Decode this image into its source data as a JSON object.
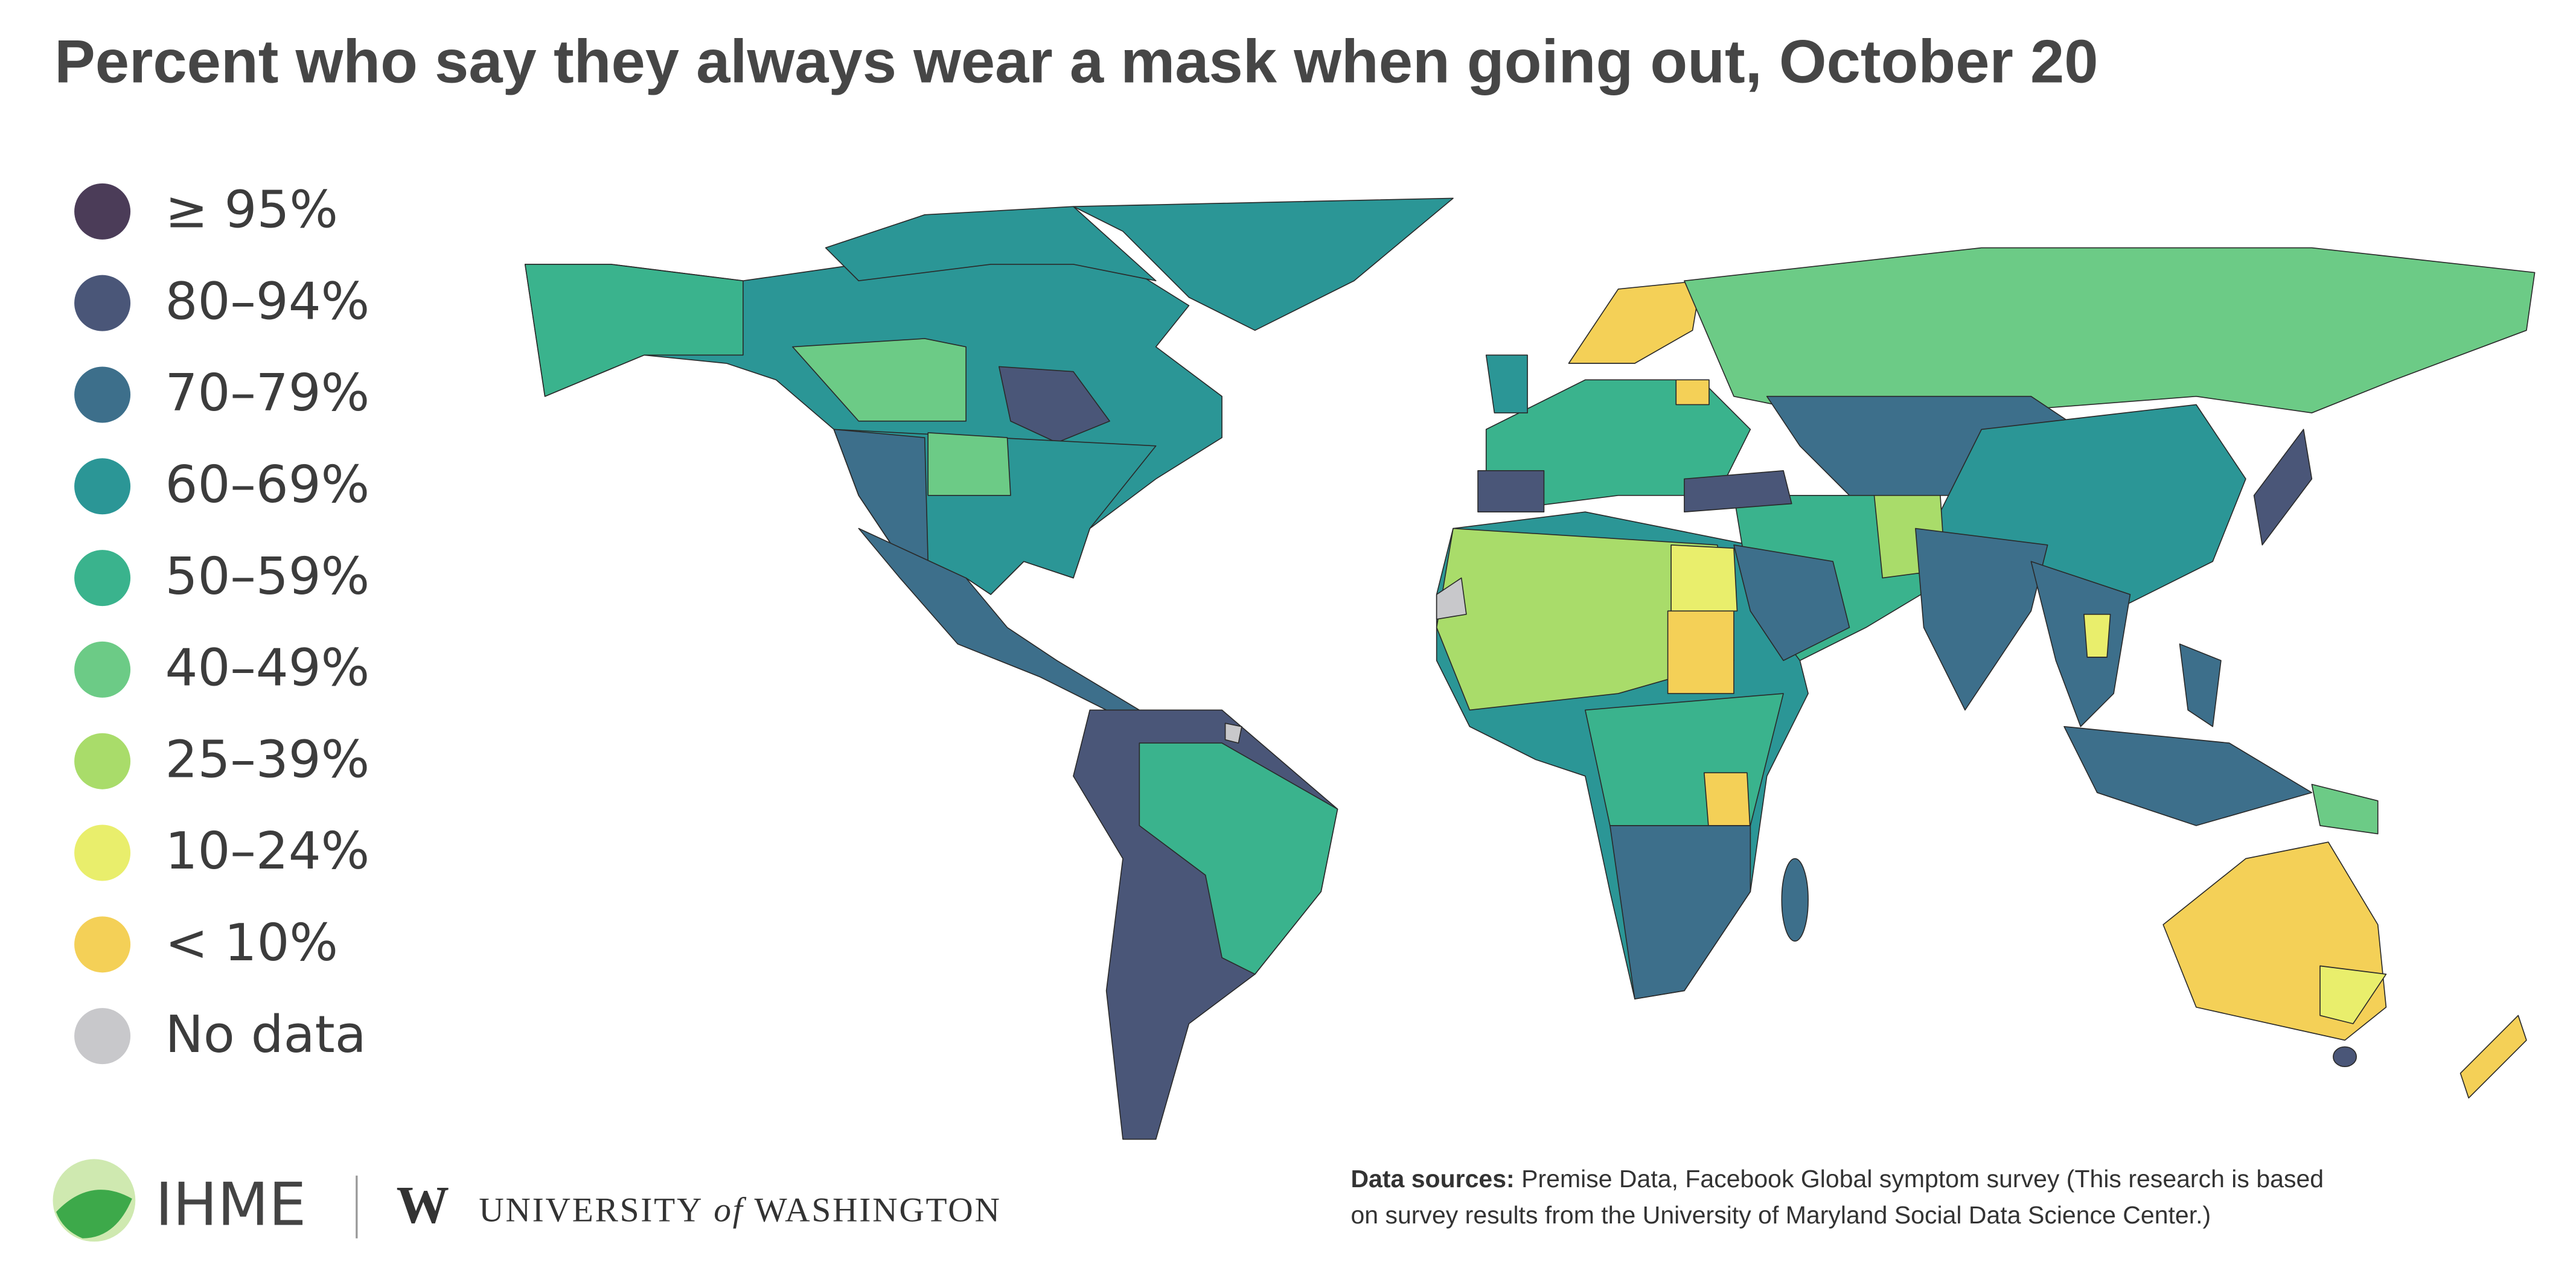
{
  "title": "Percent who say they always wear a mask when going out, October 20",
  "legend": [
    {
      "label": "≥ 95%",
      "color": "#4b3c58"
    },
    {
      "label": "80–94%",
      "color": "#4a5678"
    },
    {
      "label": "70–79%",
      "color": "#3d6f8b"
    },
    {
      "label": "60–69%",
      "color": "#2b9696"
    },
    {
      "label": "50–59%",
      "color": "#3ab38d"
    },
    {
      "label": "40–49%",
      "color": "#6ccb86"
    },
    {
      "label": "25–39%",
      "color": "#a9dc6a"
    },
    {
      "label": "10–24%",
      "color": "#e9ee6c"
    },
    {
      "label": "< 10%",
      "color": "#f4d057"
    },
    {
      "label": "No data",
      "color": "#c8c8cb"
    }
  ],
  "footer": {
    "ihme": "IHME",
    "university": "UNIVERSITY",
    "of": "of",
    "washington": "WASHINGTON",
    "w": "W"
  },
  "sources": {
    "label": "Data sources:",
    "lines": [
      " Premise Data, Facebook Global symptom survey (This research is based",
      "on survey results from the University of Maryland Social Data Science Center.)"
    ]
  }
}
